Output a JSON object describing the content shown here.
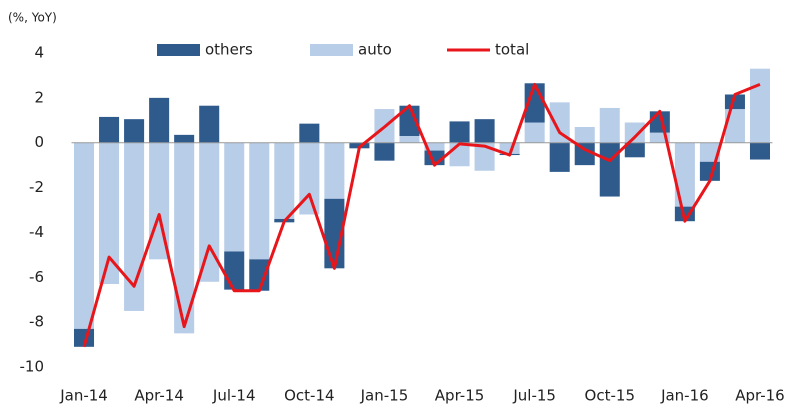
{
  "chart_data": {
    "type": "bar",
    "y_label": "(%, YoY)",
    "categories": [
      "Jan-14",
      null,
      null,
      "Apr-14",
      null,
      null,
      "Jul-14",
      null,
      null,
      "Oct-14",
      null,
      null,
      "Jan-15",
      null,
      null,
      "Apr-15",
      null,
      null,
      "Jul-15",
      null,
      null,
      "Oct-15",
      null,
      null,
      "Jan-16",
      null,
      null,
      "Apr-16"
    ],
    "series": [
      {
        "name": "others",
        "color": "#2e5a8c",
        "values": [
          -0.8,
          1.15,
          1.05,
          2.0,
          0.35,
          1.65,
          -1.7,
          -1.4,
          -0.15,
          0.85,
          -3.1,
          -0.25,
          -0.8,
          1.35,
          -0.65,
          0.95,
          1.05,
          -0.05,
          1.75,
          -1.3,
          -1.0,
          -2.4,
          -0.65,
          0.95,
          -0.65,
          -0.85,
          0.65,
          -0.75
        ]
      },
      {
        "name": "auto",
        "color": "#b8cde8",
        "values": [
          -8.3,
          -6.3,
          -7.5,
          -5.2,
          -8.5,
          -6.2,
          -4.85,
          -5.2,
          -3.4,
          -3.2,
          -2.5,
          0,
          1.5,
          0.3,
          -0.35,
          -1.05,
          -1.25,
          -0.5,
          0.9,
          1.8,
          0.7,
          1.55,
          0.9,
          0.45,
          -2.85,
          -0.85,
          1.5,
          3.3
        ]
      },
      {
        "name": "total",
        "type": "line",
        "color": "#e8161b",
        "values": [
          -9.1,
          -5.1,
          -6.4,
          -3.2,
          -8.2,
          -4.6,
          -6.6,
          -6.6,
          -3.5,
          -2.3,
          -5.6,
          -0.2,
          0.7,
          1.65,
          -1.0,
          -0.05,
          -0.15,
          -0.55,
          2.6,
          0.45,
          -0.3,
          -0.8,
          0.25,
          1.4,
          -3.5,
          -1.7,
          2.15,
          2.6
        ]
      }
    ],
    "ylim": [
      -10,
      4
    ],
    "yticks": [
      -10,
      -8,
      -6,
      -4,
      -2,
      0,
      2,
      4
    ],
    "grid": false
  }
}
